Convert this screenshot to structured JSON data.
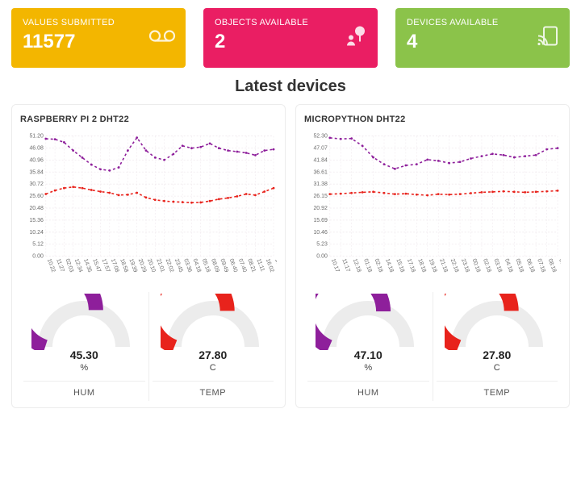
{
  "cards": [
    {
      "title": "VALUES SUBMITTED",
      "value": "11577",
      "bg": "#f3b600",
      "icon": "voicemail"
    },
    {
      "title": "OBJECTS AVAILABLE",
      "value": "2",
      "bg": "#ea1e63",
      "icon": "person-tree"
    },
    {
      "title": "DEVICES AVAILABLE",
      "value": "4",
      "bg": "#8bc34a",
      "icon": "cast"
    }
  ],
  "section_title": "Latest devices",
  "grid_color": "#f0e9ee",
  "axis_text_color": "#6b6b6b",
  "chart_style": {
    "hum_color": "#8e1f9b",
    "temp_color": "#e8231c",
    "dash": "3,3",
    "stroke_width": 1.6,
    "font_size_axis": 7
  },
  "devices": [
    {
      "title": "RASPBERRY PI 2 DHT22",
      "y_labels": [
        "51.20",
        "46.08",
        "40.96",
        "35.84",
        "30.72",
        "25.60",
        "20.48",
        "15.36",
        "10.24",
        "5.12",
        "0.00"
      ],
      "y_max": 51.2,
      "x_labels": [
        "10:22",
        "11:27",
        "02:03",
        "12:34",
        "14:35",
        "15:47",
        "17:57",
        "17:08",
        "18:58",
        "19:39",
        "20:29",
        "20:10",
        "21:01",
        "22:02",
        "23:45",
        "03:36",
        "04:18",
        "05:18",
        "08:09",
        "09:49",
        "06:40",
        "07:40",
        "08:21",
        "11:11",
        "16:02",
        "10:04"
      ],
      "series": {
        "hum": [
          50.0,
          49.8,
          48.5,
          45.0,
          42.0,
          39.0,
          37.0,
          36.5,
          37.8,
          45.0,
          50.5,
          45.0,
          42.0,
          41.0,
          43.5,
          47.0,
          46.0,
          46.5,
          48.0,
          46.0,
          45.0,
          44.5,
          44.0,
          43.0,
          45.0,
          45.5
        ],
        "temp": [
          26.5,
          28.0,
          29.0,
          29.5,
          29.0,
          28.2,
          27.5,
          27.0,
          26.0,
          26.2,
          27.0,
          25.0,
          24.0,
          23.5,
          23.2,
          23.0,
          22.8,
          22.9,
          23.5,
          24.3,
          24.8,
          25.5,
          26.5,
          26.0,
          27.5,
          29.0
        ]
      },
      "gauges": [
        {
          "label": "HUM",
          "value": "45.30",
          "unit": "%",
          "pct": 0.6,
          "color": "#8e1f9b"
        },
        {
          "label": "TEMP",
          "value": "27.80",
          "unit": "C",
          "pct": 0.62,
          "color": "#e8231c"
        }
      ]
    },
    {
      "title": "MICROPYTHON DHT22",
      "y_labels": [
        "52.30",
        "47.07",
        "41.84",
        "36.61",
        "31.38",
        "26.15",
        "20.92",
        "15.69",
        "10.46",
        "5.23",
        "0.00"
      ],
      "y_max": 52.3,
      "x_labels": [
        "10:17",
        "11:17",
        "12:18",
        "01:18",
        "02:18",
        "14:18",
        "15:18",
        "17:18",
        "18:18",
        "19:18",
        "21:18",
        "22:18",
        "23:18",
        "00:18",
        "02:18",
        "03:18",
        "04:18",
        "05:18",
        "06:18",
        "07:18",
        "08:18",
        "09:18"
      ],
      "series": {
        "hum": [
          51.5,
          51.0,
          51.2,
          48.0,
          43.0,
          40.0,
          38.0,
          39.5,
          40.0,
          42.0,
          41.5,
          40.5,
          41.0,
          42.5,
          43.5,
          44.5,
          44.0,
          43.0,
          43.5,
          44.0,
          46.5,
          47.0
        ],
        "temp": [
          27.0,
          27.2,
          27.5,
          27.8,
          28.0,
          27.5,
          27.0,
          27.2,
          26.8,
          26.5,
          27.0,
          26.8,
          27.0,
          27.4,
          27.8,
          28.0,
          28.2,
          28.0,
          27.8,
          28.0,
          28.2,
          28.5
        ]
      },
      "gauges": [
        {
          "label": "HUM",
          "value": "47.10",
          "unit": "%",
          "pct": 0.63,
          "color": "#8e1f9b"
        },
        {
          "label": "TEMP",
          "value": "27.80",
          "unit": "C",
          "pct": 0.62,
          "color": "#e8231c"
        }
      ]
    }
  ]
}
